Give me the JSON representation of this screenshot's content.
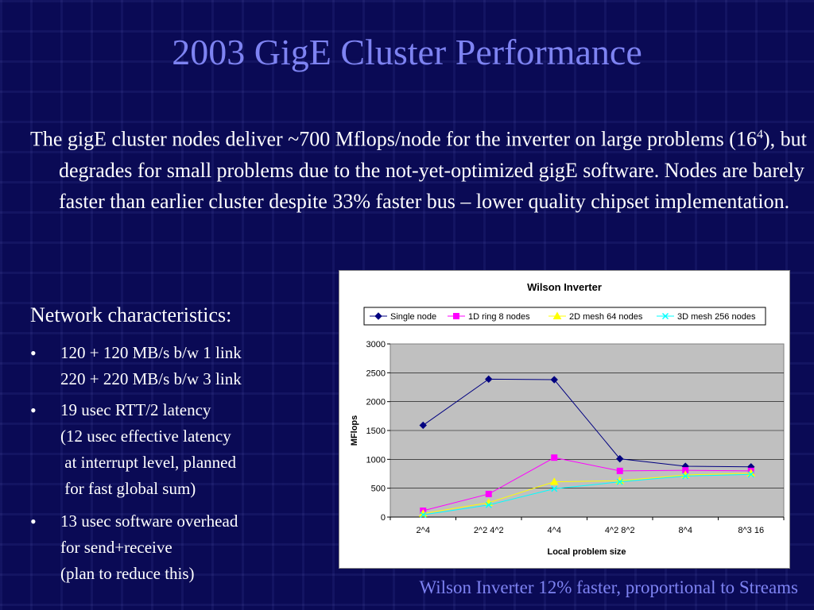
{
  "slide": {
    "title": "2003 GigE Cluster Performance",
    "intro_text": "The gigE cluster nodes deliver ~700 Mflops/node for the inverter on large problems (16",
    "intro_sup": "4",
    "intro_text2": "), but degrades for small problems due to the not-yet-optimized gigE software.  Nodes are barely faster than earlier cluster despite 33% faster bus – lower quality chipset implementation.",
    "network_title": "Network characteristics:",
    "bullets": [
      {
        "line1": "120 + 120 MB/s b/w 1 link",
        "line2": "220 + 220 MB/s b/w 3 link",
        "line3": "",
        "line4": ""
      },
      {
        "line1": "19 usec RTT/2 latency",
        "line2": "(12 usec effective latency",
        "line3": " at interrupt level, planned",
        "line4": " for fast global sum)"
      },
      {
        "line1": "13 usec software overhead",
        "line2": "for send+receive",
        "line3": "(plan to reduce this)",
        "line4": ""
      }
    ],
    "bullet_marker": "•",
    "caption": "Wilson Inverter 12% faster, proportional to Streams"
  },
  "chart_data": {
    "type": "line",
    "title": "Wilson Inverter",
    "xlabel": "Local problem size",
    "ylabel": "MFlops",
    "categories": [
      "2^4",
      "2^2 4^2",
      "4^4",
      "4^2 8^2",
      "8^4",
      "8^3 16"
    ],
    "ylim": [
      0,
      3000
    ],
    "yticks": [
      0,
      500,
      1000,
      1500,
      2000,
      2500,
      3000
    ],
    "grid": true,
    "legend": "top",
    "series": [
      {
        "name": "Single node",
        "color": "#000080",
        "marker": "diamond",
        "values": [
          1590,
          2390,
          2380,
          1010,
          880,
          870
        ]
      },
      {
        "name": "1D ring 8 nodes",
        "color": "#ff00ff",
        "marker": "square",
        "values": [
          110,
          400,
          1030,
          800,
          810,
          800
        ]
      },
      {
        "name": "2D mesh 64 nodes",
        "color": "#ffff00",
        "marker": "triangle",
        "values": [
          60,
          250,
          610,
          630,
          730,
          760
        ]
      },
      {
        "name": "3D mesh 256 nodes",
        "color": "#00ffff",
        "marker": "x",
        "values": [
          40,
          210,
          490,
          610,
          710,
          740
        ]
      }
    ]
  }
}
